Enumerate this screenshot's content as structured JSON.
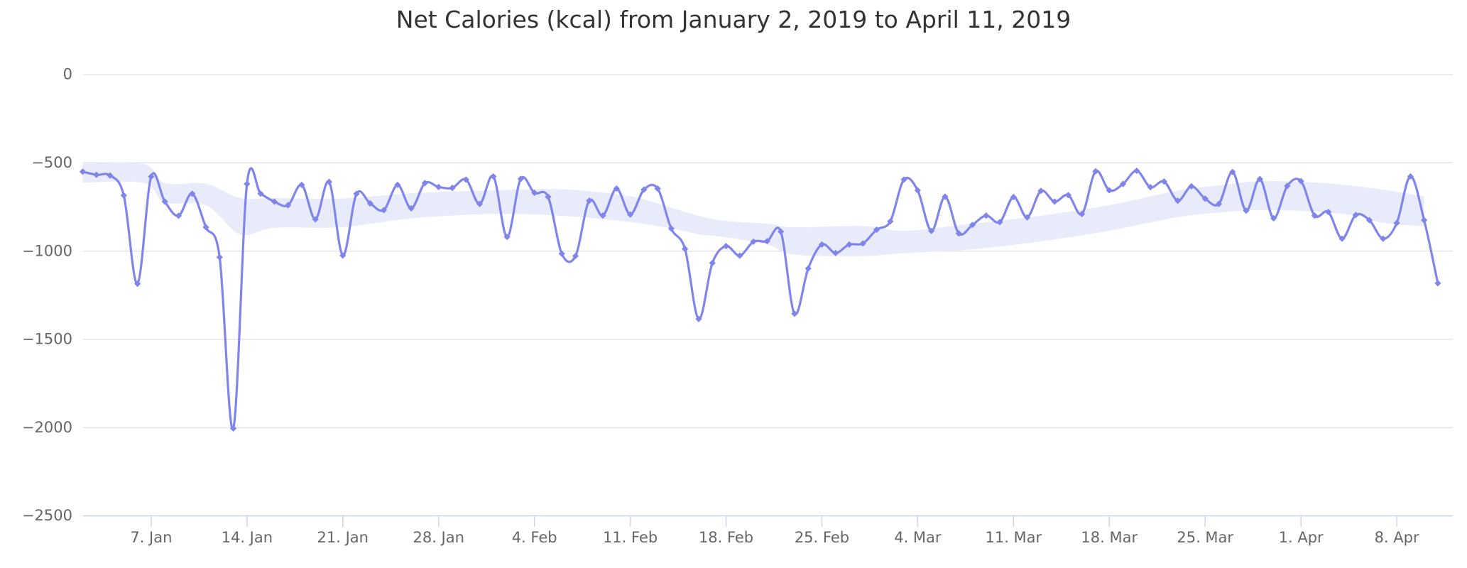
{
  "page": {
    "background_color": "#ffffff",
    "type": "standalone-chart"
  },
  "chart_data": {
    "type": "line",
    "title": "Net Calories (kcal) from January 2, 2019 to April 11, 2019",
    "xlabel": "",
    "ylabel": "",
    "unit": "kcal",
    "start_date": "2019-01-02",
    "end_date": "2019-04-11",
    "ylim": [
      -2500,
      0
    ],
    "grid": true,
    "legend": false,
    "y_ticks": [
      0,
      -500,
      -1000,
      -1500,
      -2000,
      -2500
    ],
    "y_tick_labels": [
      "0",
      "−500",
      "−1000",
      "−1500",
      "−2000",
      "−2500"
    ],
    "x_ticks": [
      {
        "day": 5,
        "label": "7. Jan"
      },
      {
        "day": 12,
        "label": "14. Jan"
      },
      {
        "day": 19,
        "label": "21. Jan"
      },
      {
        "day": 26,
        "label": "28. Jan"
      },
      {
        "day": 33,
        "label": "4. Feb"
      },
      {
        "day": 40,
        "label": "11. Feb"
      },
      {
        "day": 47,
        "label": "18. Feb"
      },
      {
        "day": 54,
        "label": "25. Feb"
      },
      {
        "day": 61,
        "label": "4. Mar"
      },
      {
        "day": 68,
        "label": "11. Mar"
      },
      {
        "day": 75,
        "label": "18. Mar"
      },
      {
        "day": 82,
        "label": "25. Mar"
      },
      {
        "day": 89,
        "label": "1. Apr"
      },
      {
        "day": 96,
        "label": "8. Apr"
      }
    ],
    "series": [
      {
        "name": "Net Calories",
        "render": "spline",
        "color": "#8085e9",
        "marker": "diamond",
        "values": [
          -550,
          -568,
          -572,
          -685,
          -1185,
          -578,
          -720,
          -800,
          -675,
          -865,
          -1035,
          -2005,
          -620,
          -675,
          -720,
          -740,
          -625,
          -820,
          -608,
          -1025,
          -676,
          -730,
          -768,
          -625,
          -758,
          -615,
          -637,
          -642,
          -595,
          -733,
          -577,
          -920,
          -591,
          -670,
          -693,
          -1015,
          -1028,
          -715,
          -799,
          -646,
          -793,
          -652,
          -646,
          -873,
          -988,
          -1385,
          -1068,
          -972,
          -1026,
          -947,
          -944,
          -890,
          -1355,
          -1099,
          -963,
          -1011,
          -963,
          -957,
          -879,
          -832,
          -595,
          -656,
          -886,
          -692,
          -900,
          -852,
          -799,
          -836,
          -694,
          -809,
          -659,
          -720,
          -683,
          -790,
          -548,
          -656,
          -620,
          -545,
          -638,
          -606,
          -715,
          -633,
          -703,
          -733,
          -552,
          -771,
          -592,
          -814,
          -631,
          -604,
          -799,
          -779,
          -930,
          -796,
          -825,
          -930,
          -841,
          -577,
          -825,
          -1182
        ]
      },
      {
        "name": "Rolling average band",
        "render": "arearange",
        "color": "#e8ebfa",
        "anchors_day_upper_lower": [
          [
            0,
            -505,
            -612
          ],
          [
            4.5,
            -508,
            -615
          ],
          [
            6,
            -615,
            -725
          ],
          [
            9,
            -618,
            -740
          ],
          [
            11.5,
            -700,
            -905
          ],
          [
            14,
            -700,
            -868
          ],
          [
            19,
            -702,
            -865
          ],
          [
            24,
            -672,
            -815
          ],
          [
            30,
            -656,
            -790
          ],
          [
            35,
            -650,
            -800
          ],
          [
            40,
            -690,
            -836
          ],
          [
            43,
            -755,
            -872
          ],
          [
            45,
            -800,
            -905
          ],
          [
            47,
            -830,
            -922
          ],
          [
            50,
            -845,
            -962
          ],
          [
            52,
            -866,
            -1020
          ],
          [
            57,
            -858,
            -1028
          ],
          [
            60,
            -885,
            -1012
          ],
          [
            65,
            -845,
            -990
          ],
          [
            70,
            -800,
            -945
          ],
          [
            75,
            -740,
            -885
          ],
          [
            80,
            -658,
            -808
          ],
          [
            83,
            -628,
            -782
          ],
          [
            86,
            -604,
            -768
          ],
          [
            90,
            -612,
            -776
          ],
          [
            93,
            -632,
            -800
          ],
          [
            95,
            -652,
            -840
          ],
          [
            98,
            -690,
            -860
          ]
        ]
      }
    ],
    "notable_extremes": {
      "deepest_dip": {
        "date": "2019-01-13",
        "value": -2005
      },
      "second_dip": {
        "date": "2019-02-16",
        "value": -1385
      },
      "third_dip": {
        "date": "2019-02-23",
        "value": -1355
      },
      "last_point": {
        "date": "2019-04-11",
        "value": -1182
      }
    },
    "colors": {
      "line": "#8085e9",
      "band_fill": "#e8ebfa",
      "gridline": "#e6e6e6",
      "axis_line": "#ccd6eb",
      "tick_mark": "#ccd6eb",
      "title_text": "#333333",
      "axis_label_text": "#666666"
    }
  }
}
